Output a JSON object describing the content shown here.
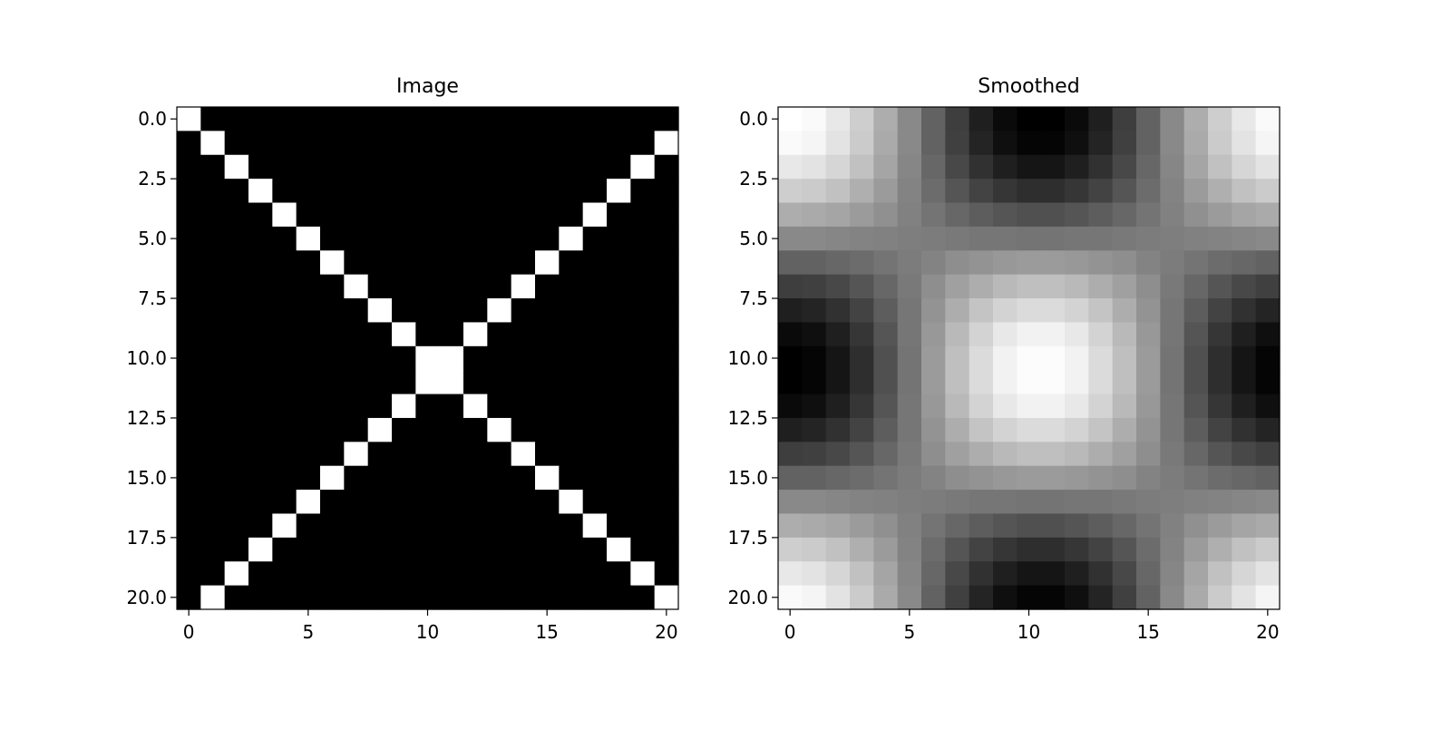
{
  "chart_data": [
    {
      "type": "heatmap",
      "title": "Image",
      "colormap": "gray",
      "xlim": [
        -0.5,
        20.5
      ],
      "ylim": [
        20.5,
        -0.5
      ],
      "xticks": [
        "0",
        "5",
        "10",
        "15",
        "20"
      ],
      "xtick_values": [
        0,
        5,
        10,
        15,
        20
      ],
      "yticks": [
        "0.0",
        "2.5",
        "5.0",
        "7.5",
        "10.0",
        "12.5",
        "15.0",
        "17.5",
        "20.0"
      ],
      "ytick_values": [
        0,
        2.5,
        5,
        7.5,
        10,
        12.5,
        15,
        17.5,
        20
      ],
      "values": [
        [
          1,
          0,
          0,
          0,
          0,
          0,
          0,
          0,
          0,
          0,
          0,
          0,
          0,
          0,
          0,
          0,
          0,
          0,
          0,
          0,
          0
        ],
        [
          0,
          1,
          0,
          0,
          0,
          0,
          0,
          0,
          0,
          0,
          0,
          0,
          0,
          0,
          0,
          0,
          0,
          0,
          0,
          0,
          1
        ],
        [
          0,
          0,
          1,
          0,
          0,
          0,
          0,
          0,
          0,
          0,
          0,
          0,
          0,
          0,
          0,
          0,
          0,
          0,
          0,
          1,
          0
        ],
        [
          0,
          0,
          0,
          1,
          0,
          0,
          0,
          0,
          0,
          0,
          0,
          0,
          0,
          0,
          0,
          0,
          0,
          0,
          1,
          0,
          0
        ],
        [
          0,
          0,
          0,
          0,
          1,
          0,
          0,
          0,
          0,
          0,
          0,
          0,
          0,
          0,
          0,
          0,
          0,
          1,
          0,
          0,
          0
        ],
        [
          0,
          0,
          0,
          0,
          0,
          1,
          0,
          0,
          0,
          0,
          0,
          0,
          0,
          0,
          0,
          0,
          1,
          0,
          0,
          0,
          0
        ],
        [
          0,
          0,
          0,
          0,
          0,
          0,
          1,
          0,
          0,
          0,
          0,
          0,
          0,
          0,
          0,
          1,
          0,
          0,
          0,
          0,
          0
        ],
        [
          0,
          0,
          0,
          0,
          0,
          0,
          0,
          1,
          0,
          0,
          0,
          0,
          0,
          0,
          1,
          0,
          0,
          0,
          0,
          0,
          0
        ],
        [
          0,
          0,
          0,
          0,
          0,
          0,
          0,
          0,
          1,
          0,
          0,
          0,
          0,
          1,
          0,
          0,
          0,
          0,
          0,
          0,
          0
        ],
        [
          0,
          0,
          0,
          0,
          0,
          0,
          0,
          0,
          0,
          1,
          0,
          0,
          1,
          0,
          0,
          0,
          0,
          0,
          0,
          0,
          0
        ],
        [
          0,
          0,
          0,
          0,
          0,
          0,
          0,
          0,
          0,
          0,
          1,
          1,
          0,
          0,
          0,
          0,
          0,
          0,
          0,
          0,
          0
        ],
        [
          0,
          0,
          0,
          0,
          0,
          0,
          0,
          0,
          0,
          0,
          1,
          1,
          0,
          0,
          0,
          0,
          0,
          0,
          0,
          0,
          0
        ],
        [
          0,
          0,
          0,
          0,
          0,
          0,
          0,
          0,
          0,
          1,
          0,
          0,
          1,
          0,
          0,
          0,
          0,
          0,
          0,
          0,
          0
        ],
        [
          0,
          0,
          0,
          0,
          0,
          0,
          0,
          0,
          1,
          0,
          0,
          0,
          0,
          1,
          0,
          0,
          0,
          0,
          0,
          0,
          0
        ],
        [
          0,
          0,
          0,
          0,
          0,
          0,
          0,
          1,
          0,
          0,
          0,
          0,
          0,
          0,
          1,
          0,
          0,
          0,
          0,
          0,
          0
        ],
        [
          0,
          0,
          0,
          0,
          0,
          0,
          1,
          0,
          0,
          0,
          0,
          0,
          0,
          0,
          0,
          1,
          0,
          0,
          0,
          0,
          0
        ],
        [
          0,
          0,
          0,
          0,
          0,
          1,
          0,
          0,
          0,
          0,
          0,
          0,
          0,
          0,
          0,
          0,
          1,
          0,
          0,
          0,
          0
        ],
        [
          0,
          0,
          0,
          0,
          1,
          0,
          0,
          0,
          0,
          0,
          0,
          0,
          0,
          0,
          0,
          0,
          0,
          1,
          0,
          0,
          0
        ],
        [
          0,
          0,
          0,
          1,
          0,
          0,
          0,
          0,
          0,
          0,
          0,
          0,
          0,
          0,
          0,
          0,
          0,
          0,
          1,
          0,
          0
        ],
        [
          0,
          0,
          1,
          0,
          0,
          0,
          0,
          0,
          0,
          0,
          0,
          0,
          0,
          0,
          0,
          0,
          0,
          0,
          0,
          1,
          0
        ],
        [
          0,
          1,
          0,
          0,
          0,
          0,
          0,
          0,
          0,
          0,
          0,
          0,
          0,
          0,
          0,
          0,
          0,
          0,
          0,
          0,
          1
        ]
      ]
    },
    {
      "type": "heatmap",
      "title": "Smoothed",
      "colormap": "gray",
      "xlim": [
        -0.5,
        20.5
      ],
      "ylim": [
        20.5,
        -0.5
      ],
      "xticks": [
        "0",
        "5",
        "10",
        "15",
        "20"
      ],
      "xtick_values": [
        0,
        5,
        10,
        15,
        20
      ],
      "yticks": [
        "0.0",
        "2.5",
        "5.0",
        "7.5",
        "10.0",
        "12.5",
        "15.0",
        "17.5",
        "20.0"
      ],
      "ytick_values": [
        0,
        2.5,
        5,
        7.5,
        10,
        12.5,
        15,
        17.5,
        20
      ],
      "values": [
        [
          1,
          0.98,
          0.91,
          0.81,
          0.68,
          0.54,
          0.39,
          0.25,
          0.13,
          0.05,
          0.01,
          0.01,
          0.05,
          0.13,
          0.25,
          0.39,
          0.54,
          0.68,
          0.81,
          0.91,
          0.98
        ],
        [
          0.98,
          0.96,
          0.89,
          0.8,
          0.67,
          0.54,
          0.39,
          0.26,
          0.15,
          0.07,
          0.03,
          0.03,
          0.07,
          0.15,
          0.26,
          0.39,
          0.54,
          0.67,
          0.8,
          0.89,
          0.96
        ],
        [
          0.91,
          0.89,
          0.84,
          0.76,
          0.65,
          0.53,
          0.41,
          0.29,
          0.2,
          0.13,
          0.09,
          0.09,
          0.13,
          0.2,
          0.29,
          0.41,
          0.53,
          0.65,
          0.76,
          0.84,
          0.89
        ],
        [
          0.81,
          0.8,
          0.76,
          0.69,
          0.61,
          0.52,
          0.43,
          0.34,
          0.27,
          0.22,
          0.19,
          0.19,
          0.22,
          0.27,
          0.34,
          0.43,
          0.52,
          0.61,
          0.69,
          0.76,
          0.8
        ],
        [
          0.68,
          0.67,
          0.65,
          0.61,
          0.57,
          0.51,
          0.46,
          0.41,
          0.37,
          0.34,
          0.32,
          0.32,
          0.34,
          0.37,
          0.41,
          0.46,
          0.51,
          0.57,
          0.61,
          0.65,
          0.67
        ],
        [
          0.54,
          0.54,
          0.53,
          0.52,
          0.51,
          0.5,
          0.49,
          0.48,
          0.47,
          0.47,
          0.46,
          0.46,
          0.47,
          0.47,
          0.48,
          0.49,
          0.5,
          0.51,
          0.52,
          0.53,
          0.54
        ],
        [
          0.39,
          0.39,
          0.41,
          0.43,
          0.46,
          0.49,
          0.52,
          0.56,
          0.58,
          0.6,
          0.61,
          0.61,
          0.6,
          0.58,
          0.56,
          0.52,
          0.49,
          0.46,
          0.43,
          0.41,
          0.39
        ],
        [
          0.25,
          0.26,
          0.29,
          0.34,
          0.41,
          0.48,
          0.56,
          0.63,
          0.68,
          0.73,
          0.75,
          0.75,
          0.73,
          0.68,
          0.63,
          0.56,
          0.48,
          0.41,
          0.34,
          0.29,
          0.26
        ],
        [
          0.13,
          0.15,
          0.2,
          0.27,
          0.37,
          0.47,
          0.58,
          0.68,
          0.77,
          0.83,
          0.86,
          0.86,
          0.83,
          0.77,
          0.68,
          0.58,
          0.47,
          0.37,
          0.27,
          0.2,
          0.15
        ],
        [
          0.05,
          0.07,
          0.13,
          0.22,
          0.34,
          0.47,
          0.6,
          0.73,
          0.83,
          0.91,
          0.95,
          0.95,
          0.91,
          0.83,
          0.73,
          0.6,
          0.47,
          0.34,
          0.22,
          0.13,
          0.07
        ],
        [
          0.01,
          0.03,
          0.09,
          0.19,
          0.32,
          0.46,
          0.61,
          0.75,
          0.86,
          0.95,
          0.99,
          0.99,
          0.95,
          0.86,
          0.75,
          0.61,
          0.46,
          0.32,
          0.19,
          0.09,
          0.03
        ],
        [
          0.01,
          0.03,
          0.09,
          0.19,
          0.32,
          0.46,
          0.61,
          0.75,
          0.86,
          0.95,
          0.99,
          0.99,
          0.95,
          0.86,
          0.75,
          0.61,
          0.46,
          0.32,
          0.19,
          0.09,
          0.03
        ],
        [
          0.05,
          0.07,
          0.13,
          0.22,
          0.34,
          0.47,
          0.6,
          0.73,
          0.83,
          0.91,
          0.95,
          0.95,
          0.91,
          0.83,
          0.73,
          0.6,
          0.47,
          0.34,
          0.22,
          0.13,
          0.07
        ],
        [
          0.13,
          0.15,
          0.2,
          0.27,
          0.37,
          0.47,
          0.58,
          0.68,
          0.77,
          0.83,
          0.86,
          0.86,
          0.83,
          0.77,
          0.68,
          0.58,
          0.47,
          0.37,
          0.27,
          0.2,
          0.15
        ],
        [
          0.25,
          0.26,
          0.29,
          0.34,
          0.41,
          0.48,
          0.56,
          0.63,
          0.68,
          0.73,
          0.75,
          0.75,
          0.73,
          0.68,
          0.63,
          0.56,
          0.48,
          0.41,
          0.34,
          0.29,
          0.26
        ],
        [
          0.39,
          0.39,
          0.41,
          0.43,
          0.46,
          0.49,
          0.52,
          0.56,
          0.58,
          0.6,
          0.61,
          0.61,
          0.6,
          0.58,
          0.56,
          0.52,
          0.49,
          0.46,
          0.43,
          0.41,
          0.39
        ],
        [
          0.54,
          0.54,
          0.53,
          0.52,
          0.51,
          0.5,
          0.49,
          0.48,
          0.47,
          0.47,
          0.46,
          0.46,
          0.47,
          0.47,
          0.48,
          0.49,
          0.5,
          0.51,
          0.52,
          0.53,
          0.54
        ],
        [
          0.68,
          0.67,
          0.65,
          0.61,
          0.57,
          0.51,
          0.46,
          0.41,
          0.37,
          0.34,
          0.32,
          0.32,
          0.34,
          0.37,
          0.41,
          0.46,
          0.51,
          0.57,
          0.61,
          0.65,
          0.67
        ],
        [
          0.81,
          0.8,
          0.76,
          0.69,
          0.61,
          0.52,
          0.43,
          0.34,
          0.27,
          0.22,
          0.19,
          0.19,
          0.22,
          0.27,
          0.34,
          0.43,
          0.52,
          0.61,
          0.69,
          0.76,
          0.8
        ],
        [
          0.91,
          0.89,
          0.84,
          0.76,
          0.65,
          0.53,
          0.41,
          0.29,
          0.2,
          0.13,
          0.09,
          0.09,
          0.13,
          0.2,
          0.29,
          0.41,
          0.53,
          0.65,
          0.76,
          0.84,
          0.89
        ],
        [
          0.98,
          0.96,
          0.89,
          0.8,
          0.67,
          0.54,
          0.39,
          0.26,
          0.15,
          0.07,
          0.03,
          0.03,
          0.07,
          0.15,
          0.26,
          0.39,
          0.54,
          0.67,
          0.8,
          0.89,
          0.96
        ]
      ]
    }
  ]
}
